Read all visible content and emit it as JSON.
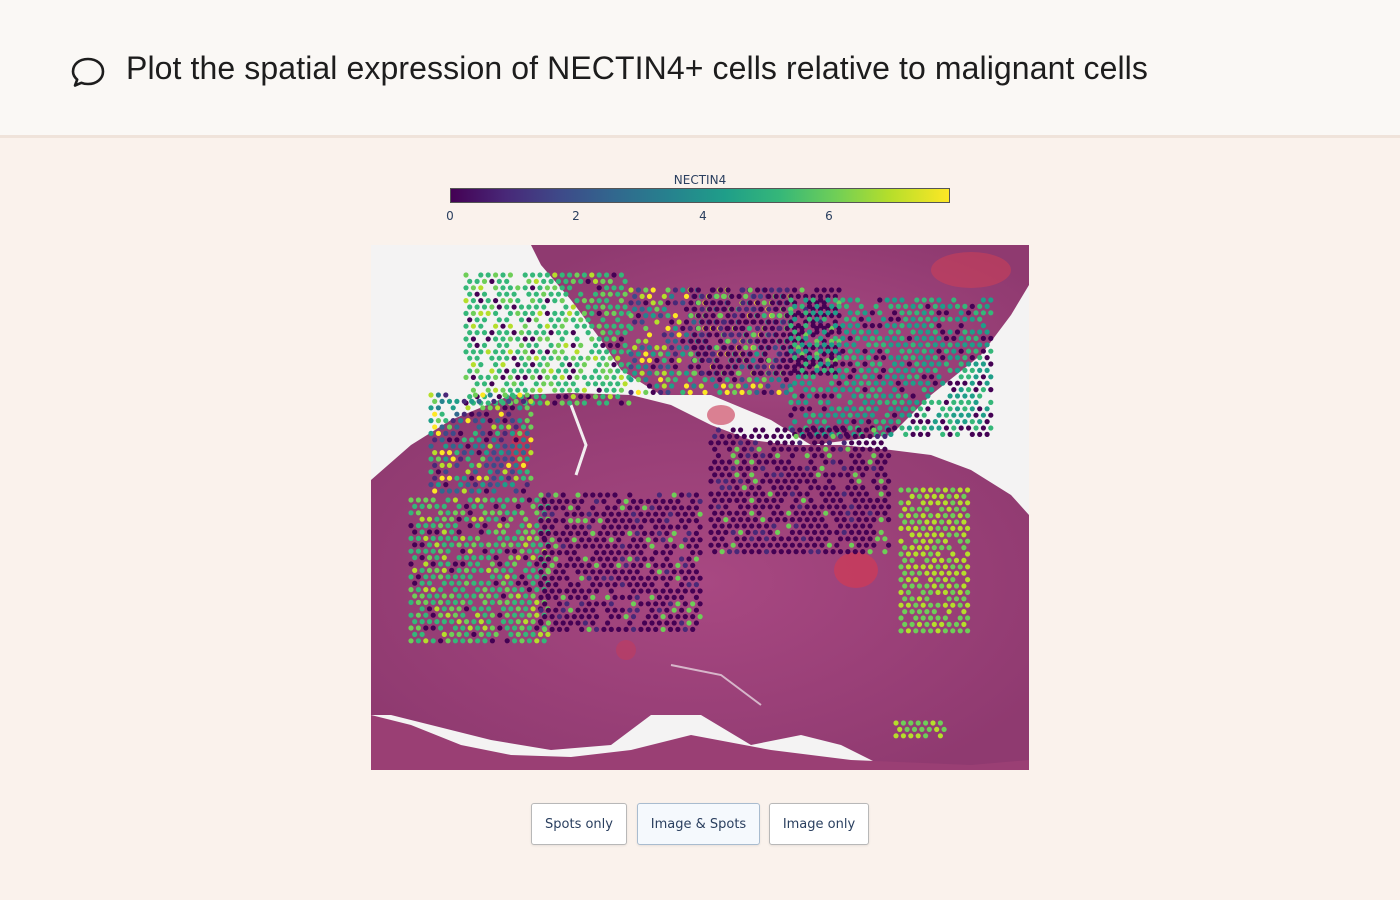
{
  "prompt": {
    "icon": "chat-bubble-icon",
    "text": "Plot the spatial expression of NECTIN4+ cells relative to malignant cells"
  },
  "colorbar": {
    "title": "NECTIN4",
    "ticks": [
      "0",
      "2",
      "4",
      "6"
    ],
    "colorscale": "viridis",
    "colors": [
      "#440154",
      "#482878",
      "#3e4a89",
      "#31688e",
      "#26828e",
      "#1f9e89",
      "#35b779",
      "#6ece58",
      "#b5de2b",
      "#fde725"
    ],
    "range": [
      0,
      7.9
    ]
  },
  "tissue_image": {
    "description": "H&E stained tissue section with overlaid expression spots",
    "tissue_color": "#a0407a",
    "background_color": "#f4f3f3"
  },
  "view_buttons": {
    "spots_only": "Spots only",
    "image_and_spots": "Image & Spots",
    "image_only": "Image only",
    "selected": "Image & Spots"
  }
}
